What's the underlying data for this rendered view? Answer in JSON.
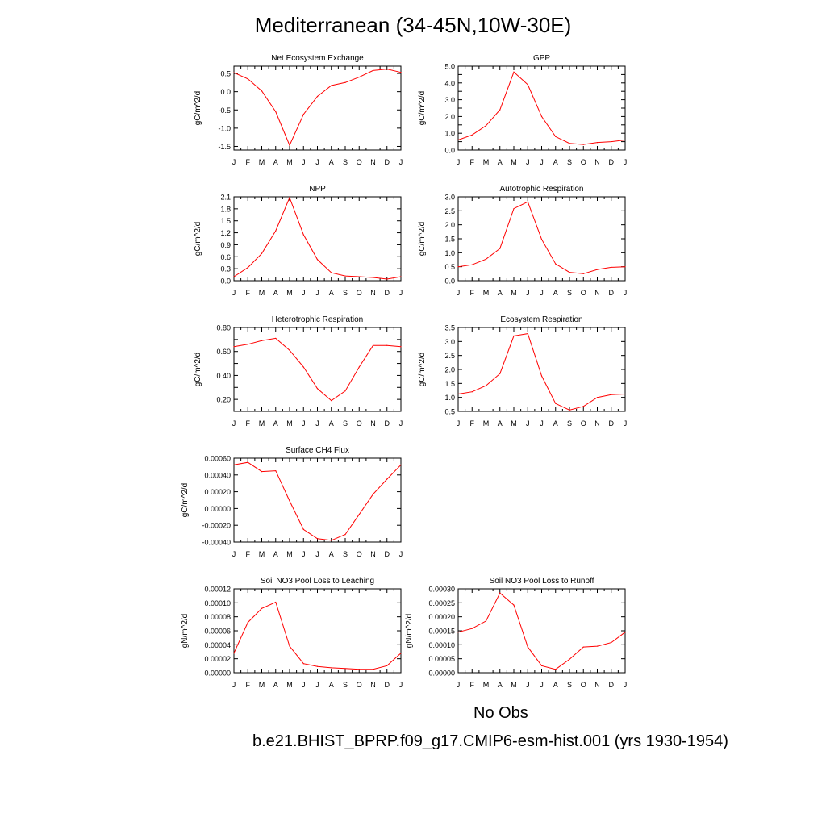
{
  "title": "Mediterranean (34-45N,10W-30E)",
  "line_color": "#ff0000",
  "months": [
    "J",
    "F",
    "M",
    "A",
    "M",
    "J",
    "J",
    "A",
    "S",
    "O",
    "N",
    "D",
    "J"
  ],
  "legend": {
    "obs_label": "No Obs",
    "obs_color": "#8080ff",
    "model_label": "b.e21.BHIST_BPRP.f09_g17.CMIP6-esm-hist.001 (yrs 1930-1954)",
    "model_color": "#ff8080"
  },
  "chart_data": [
    {
      "type": "line",
      "title": "Net Ecosystem Exchange",
      "ylabel": "gC/m^2/d",
      "ylim": [
        -1.6,
        0.7
      ],
      "yticks": [
        0.5,
        0.0,
        -0.5,
        -1.0,
        -1.5
      ],
      "ytick_labels": [
        "0.5",
        "0.0",
        "-0.5",
        "-1.0",
        "-1.5"
      ],
      "values": [
        0.52,
        0.35,
        0.02,
        -0.55,
        -1.47,
        -0.62,
        -0.13,
        0.17,
        0.25,
        0.4,
        0.58,
        0.62,
        0.53
      ]
    },
    {
      "type": "line",
      "title": "GPP",
      "ylabel": "gC/m^2/d",
      "ylim": [
        0.0,
        5.0
      ],
      "yticks": [
        0.0,
        0.5,
        1.0,
        1.5,
        2.0,
        2.5,
        3.0,
        3.5,
        4.0,
        4.5,
        5.0
      ],
      "ytick_labels": [
        "0.0",
        "",
        "1.0",
        "",
        "2.0",
        "",
        "3.0",
        "",
        "4.0",
        "",
        "5.0"
      ],
      "values": [
        0.6,
        0.9,
        1.45,
        2.4,
        4.65,
        3.9,
        2.0,
        0.8,
        0.4,
        0.33,
        0.45,
        0.5,
        0.6
      ]
    },
    {
      "type": "line",
      "title": "NPP",
      "ylabel": "gC/m^2/d",
      "ylim": [
        0.0,
        2.1
      ],
      "yticks": [
        0.0,
        0.3,
        0.6,
        0.9,
        1.2,
        1.5,
        1.8,
        2.1
      ],
      "ytick_labels": [
        "0.0",
        "0.3",
        "0.6",
        "0.9",
        "1.2",
        "1.5",
        "1.8",
        "2.1"
      ],
      "values": [
        0.1,
        0.33,
        0.68,
        1.25,
        2.08,
        1.15,
        0.53,
        0.2,
        0.12,
        0.1,
        0.08,
        0.04,
        0.1
      ]
    },
    {
      "type": "line",
      "title": "Autotrophic Respiration",
      "ylabel": "gC/m^2/d",
      "ylim": [
        0.0,
        3.0
      ],
      "yticks": [
        0.0,
        0.5,
        1.0,
        1.5,
        2.0,
        2.5,
        3.0
      ],
      "ytick_labels": [
        "0.0",
        "0.5",
        "1.0",
        "1.5",
        "2.0",
        "2.5",
        "3.0"
      ],
      "values": [
        0.5,
        0.57,
        0.77,
        1.15,
        2.58,
        2.82,
        1.48,
        0.6,
        0.3,
        0.25,
        0.4,
        0.48,
        0.5
      ]
    },
    {
      "type": "line",
      "title": "Heterotrophic Respiration",
      "ylabel": "gC/m^2/d",
      "ylim": [
        0.1,
        0.8
      ],
      "yticks": [
        0.2,
        0.3,
        0.4,
        0.5,
        0.6,
        0.7,
        0.8
      ],
      "ytick_labels": [
        "0.20",
        "",
        "0.40",
        "",
        "0.60",
        "",
        "0.80"
      ],
      "values": [
        0.64,
        0.66,
        0.69,
        0.71,
        0.61,
        0.47,
        0.29,
        0.19,
        0.27,
        0.47,
        0.65,
        0.65,
        0.64
      ]
    },
    {
      "type": "line",
      "title": "Ecosystem Respiration",
      "ylabel": "gC/m^2/d",
      "ylim": [
        0.5,
        3.5
      ],
      "yticks": [
        0.5,
        1.0,
        1.5,
        2.0,
        2.5,
        3.0,
        3.5
      ],
      "ytick_labels": [
        "0.5",
        "1.0",
        "1.5",
        "2.0",
        "2.5",
        "3.0",
        "3.5"
      ],
      "values": [
        1.12,
        1.2,
        1.42,
        1.85,
        3.2,
        3.28,
        1.77,
        0.78,
        0.55,
        0.68,
        1.0,
        1.1,
        1.12
      ]
    },
    {
      "type": "line",
      "title": "Surface CH4 Flux",
      "ylabel": "gC/m^2/d",
      "ylim": [
        -0.0004,
        0.0006
      ],
      "yticks": [
        -0.0004,
        -0.0002,
        0.0,
        0.0002,
        0.0004,
        0.0006
      ],
      "ytick_labels": [
        "-0.00040",
        "-0.00020",
        "0.00000",
        "0.00020",
        "0.00040",
        "0.00060"
      ],
      "values": [
        0.00052,
        0.00055,
        0.00044,
        0.00045,
        9e-05,
        -0.00025,
        -0.00036,
        -0.00038,
        -0.00031,
        -7e-05,
        0.00017,
        0.00035,
        0.00052
      ]
    },
    {
      "type": "line",
      "title": "Soil NO3 Pool Loss to Leaching",
      "ylabel": "gN/m^2/d",
      "ylim": [
        0.0,
        0.00012
      ],
      "yticks": [
        0.0,
        2e-05,
        4e-05,
        6e-05,
        8e-05,
        0.0001,
        0.00012
      ],
      "ytick_labels": [
        "0.00000",
        "0.00002",
        "0.00004",
        "0.00006",
        "0.00008",
        "0.00010",
        "0.00012"
      ],
      "values": [
        2.8e-05,
        7.2e-05,
        9.2e-05,
        0.000101,
        3.8e-05,
        1.3e-05,
        9e-06,
        7e-06,
        6e-06,
        5e-06,
        5e-06,
        1e-05,
        2.8e-05
      ]
    },
    {
      "type": "line",
      "title": "Soil NO3 Pool Loss to Runoff",
      "ylabel": "gN/m^2/d",
      "ylim": [
        0.0,
        0.0003
      ],
      "yticks": [
        0.0,
        5e-05,
        0.0001,
        0.00015,
        0.0002,
        0.00025,
        0.0003
      ],
      "ytick_labels": [
        "0.00000",
        "0.00005",
        "0.00010",
        "0.00015",
        "0.00020",
        "0.00025",
        "0.00030"
      ],
      "values": [
        0.000145,
        0.000158,
        0.000185,
        0.000285,
        0.000242,
        9.2e-05,
        2.5e-05,
        1.2e-05,
        4.8e-05,
        9.2e-05,
        9.5e-05,
        0.000108,
        0.000145
      ]
    }
  ]
}
